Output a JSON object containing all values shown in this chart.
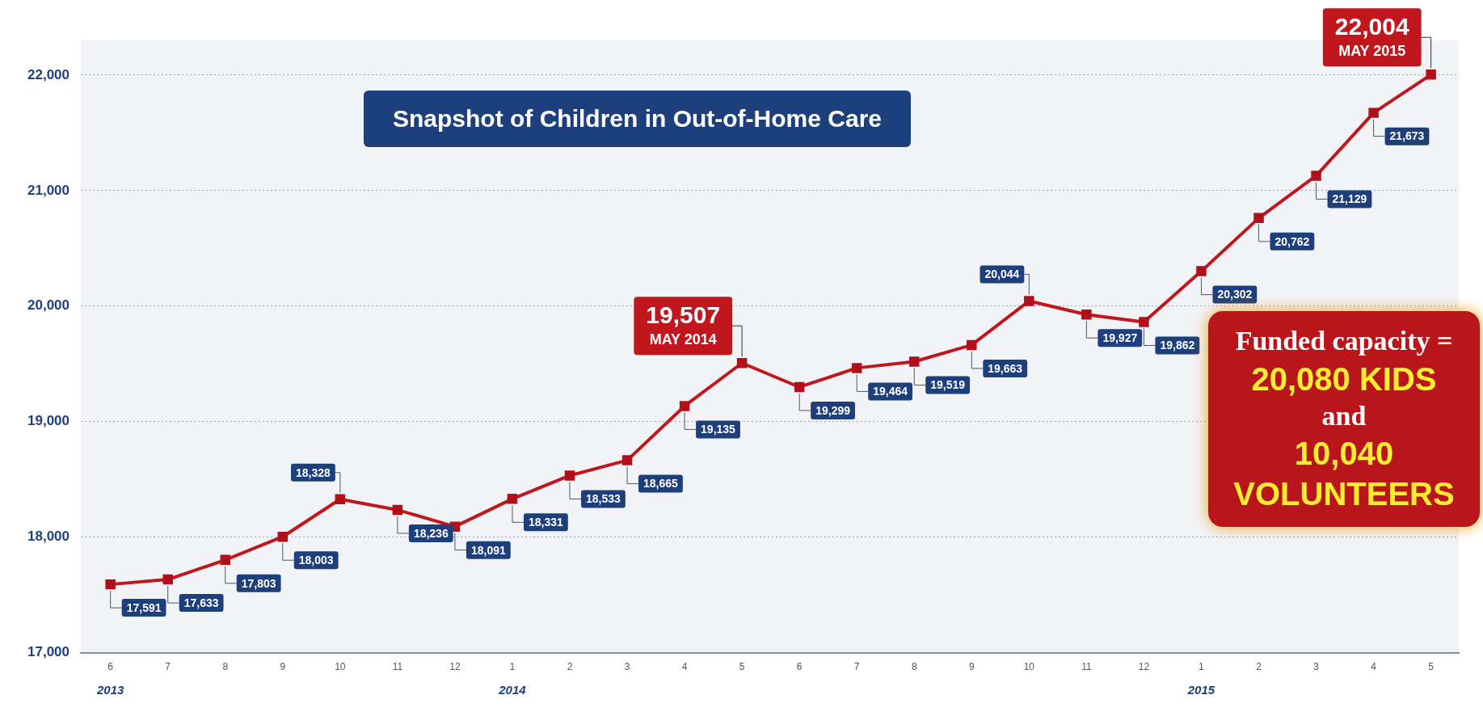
{
  "chart_data": {
    "type": "line",
    "title": "Snapshot of Children in Out-of-Home Care",
    "x": [
      "2013-06",
      "2013-07",
      "2013-08",
      "2013-09",
      "2013-10",
      "2013-11",
      "2013-12",
      "2014-01",
      "2014-02",
      "2014-03",
      "2014-04",
      "2014-05",
      "2014-06",
      "2014-07",
      "2014-08",
      "2014-09",
      "2014-10",
      "2014-11",
      "2014-12",
      "2015-01",
      "2015-02",
      "2015-03",
      "2015-04",
      "2015-05"
    ],
    "series": [
      {
        "color": "#c0161d",
        "values": [
          17591,
          17633,
          17803,
          18003,
          18328,
          18236,
          18091,
          18331,
          18533,
          18665,
          19135,
          19507,
          19299,
          19464,
          19519,
          19663,
          20044,
          19927,
          19862,
          20302,
          20762,
          21129,
          21673,
          22004
        ],
        "value_labels": [
          "17,591",
          "17,633",
          "17,803",
          "18,003",
          "18,328",
          "18,236",
          "18,091",
          "18,331",
          "18,533",
          "18,665",
          "19,135",
          "19,507",
          "19,299",
          "19,464",
          "19,519",
          "19,663",
          "20,044",
          "19,927",
          "19,862",
          "20,302",
          "20,762",
          "21,129",
          "21,673",
          "22,004"
        ]
      }
    ],
    "xlim": [
      "2013-05-16",
      "2015-05-16"
    ],
    "xticks": [
      {
        "value": "2013-06",
        "label": "6"
      },
      {
        "value": "2013-07",
        "label": "7"
      },
      {
        "value": "2013-08",
        "label": "8"
      },
      {
        "value": "2013-09",
        "label": "9"
      },
      {
        "value": "2013-10",
        "label": "10"
      },
      {
        "value": "2013-11",
        "label": "11"
      },
      {
        "value": "2013-12",
        "label": "12"
      },
      {
        "value": "2014-01",
        "label": "1"
      },
      {
        "value": "2014-02",
        "label": "2"
      },
      {
        "value": "2014-03",
        "label": "3"
      },
      {
        "value": "2014-04",
        "label": "4"
      },
      {
        "value": "2014-05",
        "label": "5"
      },
      {
        "value": "2014-06",
        "label": "6"
      },
      {
        "value": "2014-07",
        "label": "7"
      },
      {
        "value": "2014-08",
        "label": "8"
      },
      {
        "value": "2014-09",
        "label": "9"
      },
      {
        "value": "2014-10",
        "label": "10"
      },
      {
        "value": "2014-11",
        "label": "11"
      },
      {
        "value": "2014-12",
        "label": "12"
      },
      {
        "value": "2015-01",
        "label": "1"
      },
      {
        "value": "2015-02",
        "label": "2"
      },
      {
        "value": "2015-03",
        "label": "3"
      },
      {
        "value": "2015-04",
        "label": "4"
      },
      {
        "value": "2015-05",
        "label": "5"
      }
    ],
    "ylim": [
      17000,
      22300
    ],
    "yticks": [
      {
        "value": 17000,
        "label": "17,000"
      },
      {
        "value": 18000,
        "label": "18,000"
      },
      {
        "value": 19000,
        "label": "19,000"
      },
      {
        "value": 20000,
        "label": "20,000"
      },
      {
        "value": 21000,
        "label": "21,000"
      },
      {
        "value": 22000,
        "label": "22,000"
      }
    ],
    "grid": "y",
    "marker": "square",
    "line_style": "solid",
    "legend": false,
    "annotations": [
      "2013",
      "2014",
      "2015",
      {
        "text": "MAY 2014",
        "x": "2014-05",
        "y": 19507
      },
      {
        "text": "MAY 2015",
        "x": "2015-05",
        "y": 22004
      },
      "Funded capacity = 20,080 KIDS and 10,040 VOLUNTEERS"
    ]
  }
}
